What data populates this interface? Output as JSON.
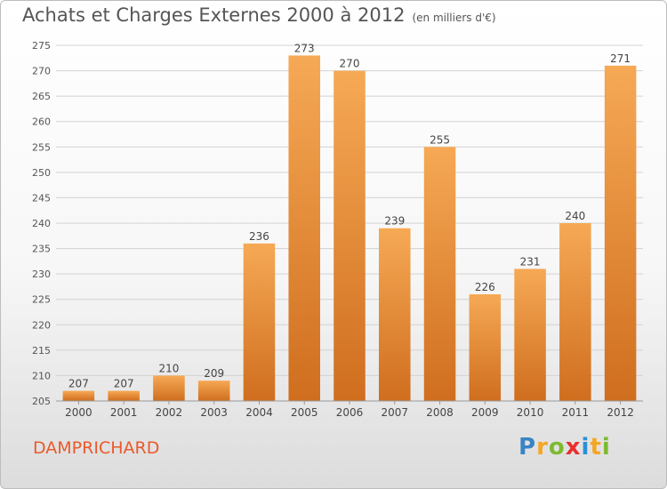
{
  "title": "Achats et Charges Externes 2000 à 2012",
  "unit_label": "(en milliers d'€)",
  "commune": "DAMPRICHARD",
  "logo": {
    "letters": [
      "P",
      "r",
      "o",
      "x",
      "i",
      "t",
      "i"
    ],
    "colors": [
      "#3a84c4",
      "#f5a623",
      "#7dba2f",
      "#e8302f",
      "#2b8fd6",
      "#f5a623",
      "#7dba2f"
    ]
  },
  "colors": {
    "bar_light": "#f6a955",
    "bar_dark": "#cf6e1e",
    "title": "#555555",
    "commune": "#ea5a2b"
  },
  "chart_data": {
    "type": "bar",
    "title": "Achats et Charges Externes 2000 à 2012",
    "subtitle": "(en milliers d'€)",
    "categories": [
      "2000",
      "2001",
      "2002",
      "2003",
      "2004",
      "2005",
      "2006",
      "2007",
      "2008",
      "2009",
      "2010",
      "2011",
      "2012"
    ],
    "values": [
      207,
      207,
      210,
      209,
      236,
      273,
      270,
      239,
      255,
      226,
      231,
      240,
      271
    ],
    "ylim": [
      205,
      275
    ],
    "yticks": [
      205,
      210,
      215,
      220,
      225,
      230,
      235,
      240,
      245,
      250,
      255,
      260,
      265,
      270,
      275
    ],
    "grid": true,
    "data_labels": true
  }
}
